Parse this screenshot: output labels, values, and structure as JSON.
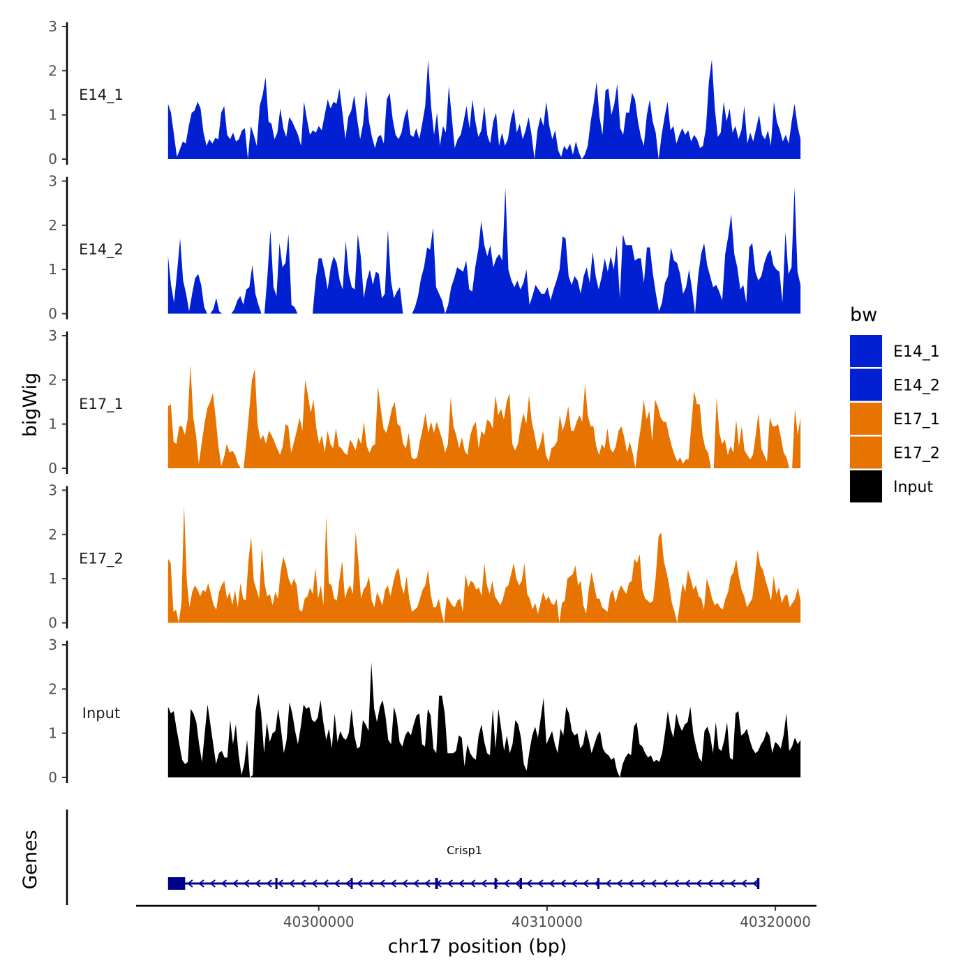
{
  "chart_data": {
    "type": "area",
    "ylabel": "bigWig",
    "xlabel": "chr17 position (bp)",
    "xlim": [
      40292000,
      40321800
    ],
    "ylim": [
      0,
      3
    ],
    "x_ticks": [
      40300000,
      40310000,
      40320000
    ],
    "x_tick_labels": [
      "40300000",
      "40310000",
      "40320000"
    ],
    "y_ticks": [
      0,
      1,
      2,
      3
    ],
    "y_tick_labels": [
      "0",
      "1",
      "2",
      "3"
    ],
    "data_range": [
      40293400,
      40321100
    ],
    "legend": {
      "title": "bw",
      "entries": [
        {
          "label": "E14_1",
          "color": "#0020d2"
        },
        {
          "label": "E14_2",
          "color": "#0020d2"
        },
        {
          "label": "E17_1",
          "color": "#e77400"
        },
        {
          "label": "E17_2",
          "color": "#e77400"
        },
        {
          "label": "Input",
          "color": "#000000"
        }
      ]
    },
    "series": [
      {
        "name": "E14_1",
        "color": "#0020d2",
        "values": [
          1.25,
          1.05,
          0.55,
          0.05,
          0.22,
          0.4,
          0.35,
          0.75,
          1.05,
          1.1,
          1.3,
          1.15,
          0.6,
          0.3,
          0.45,
          0.35,
          0.48,
          0.45,
          1.05,
          1.2,
          0.55,
          0.45,
          0.6,
          0.4,
          0.45,
          0.65,
          0.7,
          0.0,
          0.75,
          0.55,
          0.3,
          1.2,
          1.45,
          1.85,
          0.85,
          0.8,
          0.45,
          0.6,
          1.15,
          0.7,
          0.5,
          0.95,
          0.85,
          0.7,
          0.55,
          0.3,
          1.3,
          0.9,
          0.55,
          0.65,
          0.6,
          0.75,
          0.65,
          1.0,
          1.35,
          1.15,
          1.3,
          1.25,
          1.6,
          1.05,
          0.45,
          0.95,
          1.1,
          1.45,
          0.9,
          0.45,
          0.8,
          1.55,
          0.85,
          0.5,
          0.25,
          0.5,
          0.55,
          0.35,
          1.35,
          1.5,
          0.9,
          0.55,
          0.45,
          0.6,
          0.95,
          1.15,
          0.55,
          0.5,
          0.7,
          0.45,
          0.8,
          1.2,
          2.25,
          1.2,
          0.55,
          1.05,
          0.3,
          0.75,
          0.6,
          1.65,
          0.95,
          0.25,
          0.45,
          0.55,
          0.85,
          1.2,
          0.7,
          1.35,
          0.85,
          0.5,
          0.65,
          1.2,
          0.55,
          0.35,
          0.85,
          1.05,
          0.3,
          0.6,
          0.3,
          0.45,
          0.9,
          1.15,
          0.6,
          0.8,
          0.45,
          0.65,
          0.95,
          0.55,
          0.0,
          0.65,
          0.95,
          0.75,
          1.3,
          0.75,
          0.45,
          0.65,
          0.2,
          0.05,
          0.3,
          0.2,
          0.35,
          0.1,
          0.4,
          0.15,
          0.0,
          0.1,
          0.3,
          0.85,
          1.25,
          1.75,
          0.95,
          0.55,
          1.55,
          1.6,
          1.0,
          1.25,
          1.7,
          0.7,
          0.55,
          1.05,
          1.05,
          1.5,
          1.35,
          0.85,
          0.5,
          0.3,
          1.0,
          1.35,
          0.85,
          0.6,
          0.0,
          0.55,
          0.95,
          1.3,
          0.65,
          0.75,
          0.35,
          0.55,
          0.7,
          0.55,
          0.65,
          0.4,
          0.55,
          0.45,
          0.25,
          0.3,
          0.7,
          1.75,
          2.25,
          1.15,
          0.5,
          0.6,
          1.3,
          0.85,
          1.15,
          0.6,
          0.75,
          0.45,
          0.65,
          1.2,
          0.35,
          0.6,
          0.4,
          0.7,
          1.0,
          0.55,
          0.45,
          0.65,
          0.3,
          1.3,
          0.85,
          0.65,
          0.4,
          0.55,
          0.35,
          0.85,
          1.25,
          0.75,
          0.45
        ]
      },
      {
        "name": "E14_2",
        "color": "#0020d2",
        "values": [
          1.3,
          0.65,
          0.25,
          0.95,
          1.7,
          0.75,
          0.45,
          0.05,
          0.45,
          0.8,
          0.9,
          0.65,
          0.15,
          0.0,
          0.0,
          0.1,
          0.35,
          0.05,
          0.0,
          0.0,
          0.0,
          0.0,
          0.1,
          0.3,
          0.4,
          0.2,
          0.55,
          0.6,
          1.1,
          0.45,
          0.2,
          0.0,
          0.0,
          0.85,
          1.9,
          0.6,
          0.4,
          1.6,
          1.05,
          1.15,
          1.8,
          0.2,
          0.15,
          0.0,
          0.0,
          0.0,
          0.0,
          0.0,
          0.0,
          0.75,
          1.25,
          1.25,
          0.95,
          0.55,
          1.05,
          1.3,
          1.15,
          0.75,
          0.55,
          1.65,
          0.9,
          0.6,
          0.55,
          1.8,
          1.3,
          0.35,
          0.75,
          1.0,
          0.65,
          0.95,
          0.9,
          0.35,
          0.45,
          1.9,
          0.75,
          0.35,
          0.5,
          0.6,
          0.0,
          0.0,
          0.0,
          0.0,
          0.15,
          0.4,
          0.8,
          1.05,
          1.5,
          1.45,
          1.95,
          0.6,
          0.45,
          0.3,
          0.0,
          0.2,
          0.6,
          0.8,
          1.05,
          1.0,
          0.95,
          1.2,
          0.55,
          0.5,
          1.05,
          1.45,
          2.1,
          1.55,
          1.3,
          1.55,
          1.05,
          1.25,
          1.35,
          1.2,
          2.85,
          1.0,
          0.75,
          0.6,
          0.75,
          0.55,
          0.7,
          1.0,
          0.2,
          0.4,
          0.65,
          0.55,
          0.45,
          0.45,
          0.6,
          0.3,
          0.55,
          0.75,
          1.0,
          1.75,
          1.7,
          0.85,
          0.65,
          0.85,
          0.75,
          0.45,
          0.85,
          1.05,
          0.7,
          1.4,
          0.85,
          0.55,
          0.85,
          1.25,
          0.95,
          1.3,
          1.0,
          1.55,
          0.35,
          1.8,
          1.55,
          1.55,
          1.55,
          1.2,
          1.25,
          1.25,
          0.7,
          1.5,
          1.5,
          0.9,
          0.45,
          0.05,
          0.25,
          0.7,
          0.85,
          1.5,
          1.2,
          1.15,
          0.9,
          0.45,
          0.6,
          1.0,
          0.55,
          0.0,
          0.85,
          1.35,
          1.6,
          1.1,
          0.85,
          0.6,
          0.65,
          0.5,
          0.3,
          1.35,
          1.75,
          2.25,
          1.35,
          1.05,
          0.55,
          0.65,
          0.25,
          1.5,
          1.6,
          0.95,
          0.75,
          0.85,
          1.15,
          1.35,
          1.45,
          1.1,
          1.0,
          0.95,
          0.25,
          1.85,
          0.9,
          1.05,
          2.85,
          0.95,
          0.65
        ]
      },
      {
        "name": "E17_1",
        "color": "#e77400",
        "values": [
          1.4,
          1.45,
          0.6,
          0.55,
          0.95,
          0.95,
          0.75,
          1.1,
          2.35,
          1.15,
          0.75,
          0.1,
          0.55,
          1.0,
          1.35,
          1.5,
          1.7,
          1.15,
          0.5,
          0.05,
          0.25,
          0.55,
          0.35,
          0.4,
          0.3,
          0.1,
          0.0,
          0.0,
          0.6,
          1.3,
          2.0,
          2.25,
          1.0,
          0.65,
          0.75,
          0.55,
          0.85,
          0.75,
          0.6,
          0.45,
          0.3,
          0.5,
          1.0,
          0.95,
          0.35,
          0.6,
          0.85,
          1.15,
          0.85,
          2.0,
          1.65,
          1.25,
          1.55,
          0.9,
          0.55,
          0.75,
          0.35,
          0.85,
          0.55,
          0.45,
          0.9,
          0.5,
          0.45,
          0.35,
          0.3,
          0.65,
          0.55,
          0.4,
          0.7,
          0.55,
          1.05,
          0.5,
          0.35,
          0.5,
          0.55,
          1.85,
          1.35,
          0.9,
          0.8,
          1.05,
          1.35,
          1.5,
          1.0,
          0.95,
          0.55,
          0.45,
          0.8,
          0.25,
          0.2,
          0.25,
          0.6,
          0.9,
          1.25,
          0.8,
          1.05,
          0.8,
          1.05,
          0.85,
          0.65,
          0.35,
          0.55,
          1.6,
          0.95,
          0.75,
          0.45,
          0.7,
          0.4,
          0.3,
          0.75,
          0.95,
          1.05,
          0.45,
          0.85,
          0.75,
          1.1,
          1.05,
          0.9,
          1.65,
          1.2,
          1.35,
          1.1,
          1.5,
          1.7,
          0.55,
          0.4,
          0.55,
          0.95,
          1.25,
          1.0,
          1.65,
          1.05,
          0.75,
          0.4,
          0.55,
          0.85,
          0.3,
          0.15,
          0.45,
          0.5,
          0.6,
          1.2,
          0.85,
          1.05,
          1.4,
          0.85,
          0.85,
          1.05,
          1.2,
          1.05,
          1.9,
          1.2,
          0.95,
          0.95,
          0.5,
          0.3,
          0.55,
          0.45,
          0.9,
          0.45,
          0.35,
          0.5,
          0.85,
          0.95,
          0.7,
          0.35,
          0.6,
          0.35,
          0.0,
          0.55,
          0.95,
          1.55,
          1.1,
          1.3,
          0.6,
          1.55,
          1.4,
          1.15,
          1.05,
          1.05,
          0.75,
          0.5,
          0.3,
          0.15,
          0.25,
          0.1,
          0.2,
          0.2,
          1.0,
          1.75,
          1.45,
          1.45,
          0.75,
          0.45,
          0.35,
          0.0,
          0.0,
          1.6,
          0.8,
          0.55,
          0.65,
          0.3,
          0.5,
          0.35,
          1.1,
          0.5,
          0.95,
          0.4,
          0.3,
          0.2,
          0.3,
          0.75,
          1.25,
          0.45,
          0.3,
          0.15,
          1.15,
          0.95,
          0.95,
          1.0,
          0.7,
          0.35,
          0.25,
          0.0,
          0.0,
          1.35,
          0.75,
          1.15
        ]
      },
      {
        "name": "E17_2",
        "color": "#e77400",
        "values": [
          1.45,
          1.35,
          0.25,
          0.3,
          0.0,
          0.45,
          2.65,
          0.95,
          0.35,
          0.7,
          0.85,
          0.75,
          0.6,
          0.75,
          0.7,
          0.9,
          0.65,
          0.4,
          0.3,
          0.7,
          0.85,
          0.95,
          0.55,
          0.7,
          0.4,
          0.75,
          0.35,
          0.9,
          0.55,
          0.5,
          1.4,
          1.95,
          0.95,
          0.75,
          0.55,
          1.7,
          0.9,
          0.6,
          0.65,
          0.4,
          0.7,
          0.55,
          1.15,
          1.5,
          1.3,
          1.0,
          0.85,
          1.0,
          0.85,
          0.3,
          0.25,
          0.55,
          0.6,
          0.8,
          0.65,
          1.25,
          0.55,
          0.85,
          0.4,
          2.4,
          0.9,
          0.85,
          0.55,
          0.5,
          1.0,
          1.4,
          0.55,
          0.75,
          0.85,
          0.65,
          2.05,
          1.4,
          0.55,
          0.75,
          0.85,
          1.05,
          0.5,
          0.35,
          0.7,
          0.55,
          0.4,
          0.75,
          0.85,
          0.6,
          0.9,
          1.15,
          1.25,
          0.85,
          0.65,
          1.05,
          0.55,
          0.25,
          0.3,
          0.35,
          0.55,
          0.75,
          0.85,
          1.2,
          0.65,
          0.35,
          0.35,
          0.55,
          0.25,
          0.0,
          0.6,
          0.5,
          0.4,
          0.35,
          0.5,
          0.55,
          0.25,
          1.1,
          0.8,
          0.95,
          0.9,
          0.75,
          0.8,
          0.6,
          1.35,
          0.85,
          0.65,
          0.95,
          0.6,
          0.5,
          0.4,
          0.55,
          0.8,
          0.85,
          1.1,
          1.35,
          1.0,
          0.85,
          0.95,
          1.35,
          0.65,
          0.55,
          0.3,
          0.45,
          0.2,
          0.45,
          0.7,
          0.5,
          0.6,
          0.45,
          0.4,
          0.55,
          0.0,
          0.45,
          0.5,
          1.0,
          1.05,
          1.1,
          1.3,
          0.85,
          0.95,
          0.4,
          0.2,
          0.75,
          1.15,
          0.85,
          0.55,
          0.55,
          0.35,
          0.3,
          0.25,
          0.65,
          0.75,
          0.45,
          0.7,
          0.85,
          0.75,
          0.65,
          0.9,
          0.95,
          1.45,
          1.35,
          1.55,
          0.75,
          0.55,
          0.5,
          0.45,
          0.5,
          1.05,
          1.95,
          2.05,
          1.4,
          1.15,
          0.85,
          0.45,
          0.25,
          0.0,
          0.45,
          0.9,
          0.7,
          1.2,
          1.0,
          0.75,
          0.85,
          0.6,
          0.55,
          0.3,
          1.0,
          0.8,
          0.55,
          0.4,
          0.45,
          0.35,
          0.3,
          0.55,
          0.7,
          1.05,
          1.15,
          1.45,
          1.05,
          0.75,
          0.6,
          0.35,
          0.45,
          0.55,
          1.05,
          1.65,
          1.3,
          1.2,
          0.95,
          0.75,
          0.5,
          1.05,
          0.65,
          0.8,
          0.45,
          0.6,
          0.65,
          0.35,
          0.45,
          0.55,
          0.8,
          0.5
        ]
      },
      {
        "name": "Input",
        "color": "#000000",
        "values": [
          1.6,
          1.45,
          1.5,
          1.1,
          0.75,
          0.4,
          0.3,
          0.35,
          1.55,
          1.45,
          1.25,
          0.75,
          0.35,
          1.0,
          1.65,
          1.2,
          0.75,
          0.3,
          0.55,
          0.6,
          0.45,
          0.45,
          1.3,
          0.75,
          1.2,
          0.5,
          0.05,
          0.3,
          0.85,
          0.0,
          0.05,
          1.5,
          1.9,
          1.45,
          0.55,
          1.25,
          0.8,
          1.0,
          1.05,
          1.55,
          1.1,
          0.55,
          0.85,
          1.7,
          1.45,
          1.05,
          0.75,
          1.15,
          1.65,
          1.55,
          1.6,
          1.3,
          1.25,
          1.35,
          1.75,
          1.25,
          0.85,
          1.1,
          0.65,
          1.45,
          0.8,
          1.05,
          0.9,
          0.85,
          1.0,
          1.55,
          0.95,
          0.65,
          0.7,
          1.3,
          1.2,
          1.05,
          2.6,
          1.55,
          1.25,
          1.6,
          1.75,
          1.4,
          0.85,
          0.75,
          1.6,
          1.35,
          0.8,
          0.7,
          0.95,
          1.05,
          0.95,
          1.2,
          1.4,
          1.45,
          0.75,
          0.7,
          1.55,
          1.4,
          0.65,
          0.55,
          1.85,
          1.85,
          1.45,
          0.55,
          0.55,
          0.55,
          0.6,
          0.95,
          0.9,
          0.25,
          0.75,
          0.55,
          0.45,
          0.4,
          0.95,
          1.2,
          0.8,
          0.55,
          0.5,
          1.55,
          0.65,
          1.55,
          1.1,
          0.6,
          0.95,
          0.55,
          0.75,
          1.3,
          1.2,
          0.9,
          0.3,
          0.15,
          0.6,
          0.95,
          1.15,
          0.9,
          1.35,
          1.8,
          0.75,
          0.9,
          1.05,
          0.75,
          0.55,
          1.1,
          0.95,
          1.6,
          1.45,
          1.05,
          0.95,
          1.0,
          0.65,
          0.75,
          1.1,
          0.85,
          0.55,
          0.75,
          0.95,
          1.05,
          0.65,
          0.55,
          0.5,
          0.4,
          0.45,
          0.15,
          0.0,
          0.3,
          0.45,
          0.55,
          0.5,
          1.15,
          1.25,
          0.75,
          0.7,
          0.55,
          0.45,
          0.5,
          0.35,
          0.4,
          0.35,
          0.55,
          1.0,
          1.5,
          1.1,
          0.9,
          1.45,
          1.2,
          1.05,
          1.2,
          1.25,
          1.6,
          1.0,
          0.7,
          0.45,
          0.35,
          1.05,
          1.15,
          0.95,
          0.55,
          1.25,
          0.65,
          0.6,
          0.85,
          1.25,
          0.45,
          0.4,
          1.45,
          1.5,
          0.95,
          1.0,
          1.1,
          0.85,
          0.65,
          0.55,
          0.6,
          0.75,
          0.85,
          1.05,
          0.95,
          0.55,
          0.8,
          0.75,
          0.65,
          0.95,
          1.45,
          0.6,
          0.7,
          0.9,
          0.75,
          0.85
        ]
      }
    ],
    "genes_label": "Genes",
    "gene": {
      "name": "Crisp1",
      "start": 40293400,
      "end": 40319300,
      "strand": "-",
      "exons": [
        [
          40293400,
          40294150
        ],
        [
          40298100,
          40298180
        ],
        [
          40301400,
          40301480
        ],
        [
          40305100,
          40305220
        ],
        [
          40307700,
          40307780
        ],
        [
          40308800,
          40308900
        ],
        [
          40312200,
          40312280
        ],
        [
          40319200,
          40319300
        ]
      ]
    }
  }
}
